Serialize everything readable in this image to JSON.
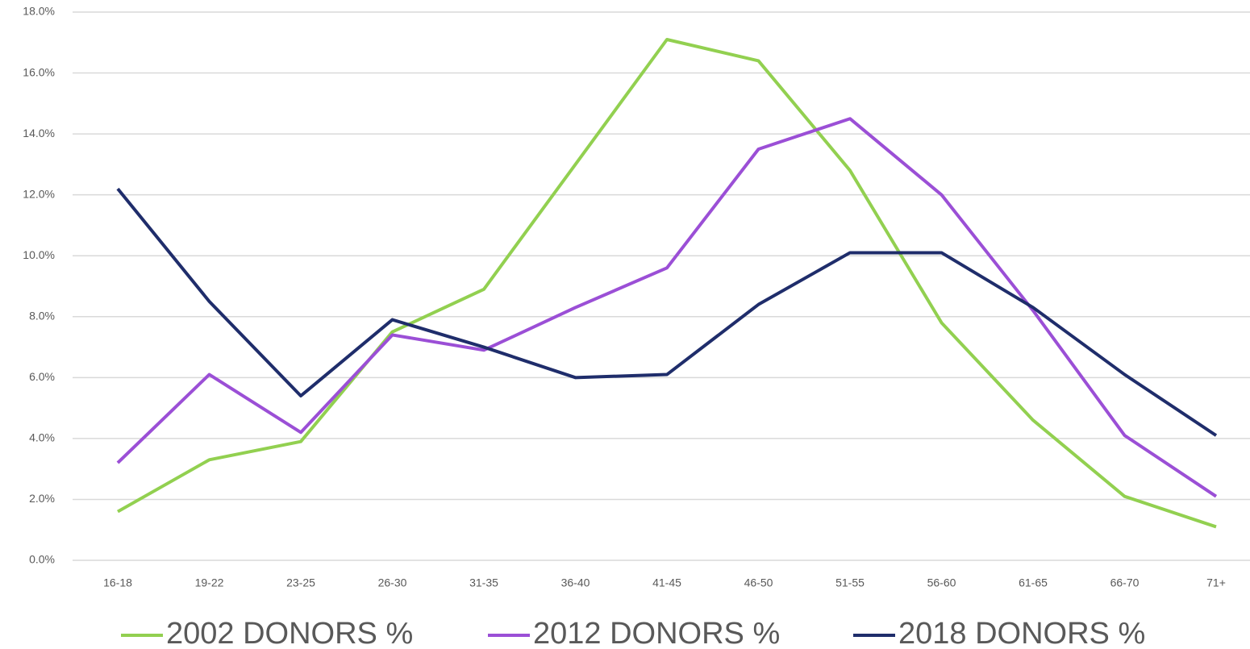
{
  "chart_data": {
    "type": "line",
    "categories": [
      "16-18",
      "19-22",
      "23-25",
      "26-30",
      "31-35",
      "36-40",
      "41-45",
      "46-50",
      "51-55",
      "56-60",
      "61-65",
      "66-70",
      "71+"
    ],
    "series": [
      {
        "name": "2002 DONORS %",
        "color": "#92d050",
        "values": [
          1.6,
          3.3,
          3.9,
          7.5,
          8.9,
          13.0,
          17.1,
          16.4,
          12.8,
          7.8,
          4.6,
          2.1,
          1.1
        ]
      },
      {
        "name": "2012 DONORS %",
        "color": "#9b4fd6",
        "values": [
          3.2,
          6.1,
          4.2,
          7.4,
          6.9,
          8.3,
          9.6,
          13.5,
          14.5,
          12.0,
          8.2,
          4.1,
          2.1
        ]
      },
      {
        "name": "2018 DONORS %",
        "color": "#1f2d6b",
        "values": [
          12.2,
          8.5,
          5.4,
          7.9,
          7.0,
          6.0,
          6.1,
          8.4,
          10.1,
          10.1,
          8.3,
          6.1,
          4.1
        ]
      }
    ],
    "ylim": [
      0,
      18
    ],
    "yticks": [
      {
        "value": 0,
        "label": "0.0%"
      },
      {
        "value": 2,
        "label": "2.0%"
      },
      {
        "value": 4,
        "label": "4.0%"
      },
      {
        "value": 6,
        "label": "6.0%"
      },
      {
        "value": 8,
        "label": "8.0%"
      },
      {
        "value": 10,
        "label": "10.0%"
      },
      {
        "value": 12,
        "label": "12.0%"
      },
      {
        "value": 14,
        "label": "14.0%"
      },
      {
        "value": 16,
        "label": "16.0%"
      },
      {
        "value": 18,
        "label": "18.0%"
      }
    ],
    "grid": true,
    "legend": "bottom"
  }
}
